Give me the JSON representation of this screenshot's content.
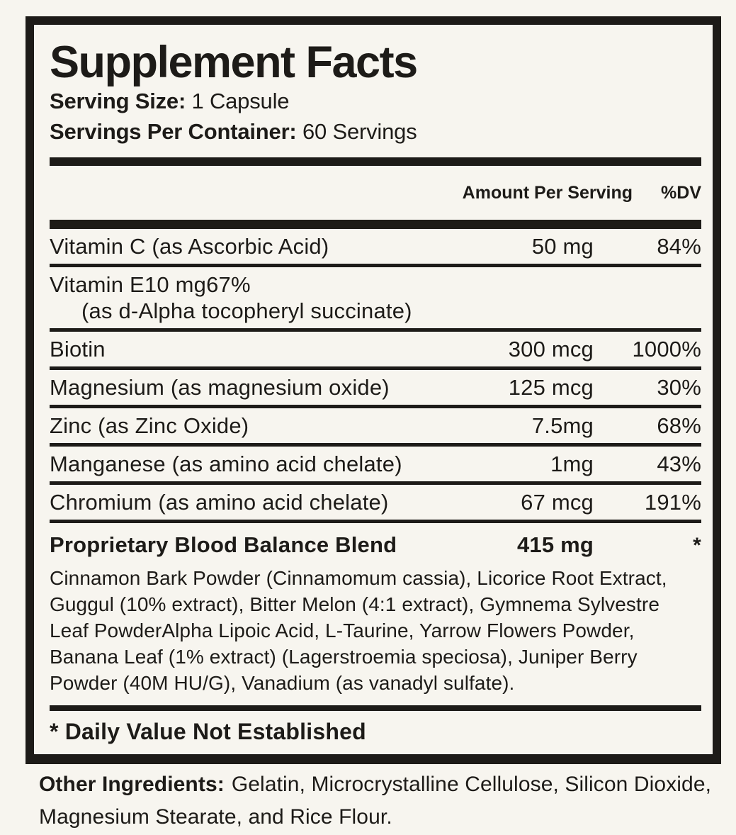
{
  "label": {
    "title": "Supplement Facts",
    "serving_size_label": "Serving Size:",
    "serving_size_value": "1 Capsule",
    "servings_per_container_label": "Servings Per Container:",
    "servings_per_container_value": "60 Servings",
    "columns": {
      "amount": "Amount Per Serving",
      "dv": "%DV"
    },
    "rows": [
      {
        "name": "Vitamin C (as Ascorbic Acid)",
        "amount": "50 mg",
        "dv": "84%"
      },
      {
        "name": "Vitamin E",
        "name2": "(as d-Alpha tocopheryl succinate)",
        "amount": "10 mg",
        "dv": "67%"
      },
      {
        "name": "Biotin",
        "amount": "300 mcg",
        "dv": "1000%"
      },
      {
        "name": "Magnesium (as magnesium oxide)",
        "amount": "125 mcg",
        "dv": "30%"
      },
      {
        "name": "Zinc (as Zinc Oxide)",
        "amount": "7.5mg",
        "dv": "68%"
      },
      {
        "name": "Manganese (as amino acid chelate)",
        "amount": "1mg",
        "dv": "43%"
      },
      {
        "name": "Chromium (as amino acid chelate)",
        "amount": "67 mcg",
        "dv": "191%"
      }
    ],
    "blend": {
      "name": "Proprietary Blood Balance Blend",
      "amount": "415 mg",
      "dv": "*",
      "description": "Cinnamon Bark Powder (Cinnamomum cassia), Licorice Root Extract, Guggul (10% extract), Bitter Melon (4:1 extract), Gymnema Sylvestre Leaf PowderAlpha Lipoic Acid, L-Taurine, Yarrow Flowers Powder, Banana Leaf (1% extract) (Lagerstroemia speciosa), Juniper Berry Powder (40M HU/G), Vanadium (as vanadyl sulfate)."
    },
    "footnote": "* Daily Value Not Established",
    "other_ingredients_label": "Other Ingredients:",
    "other_ingredients_value": "Gelatin, Microcrystalline Cellulose, Silicon Dioxide, Magnesium Stearate, and Rice Flour.",
    "colors": {
      "background": "#f7f5ef",
      "ink": "#1d1b18"
    }
  }
}
